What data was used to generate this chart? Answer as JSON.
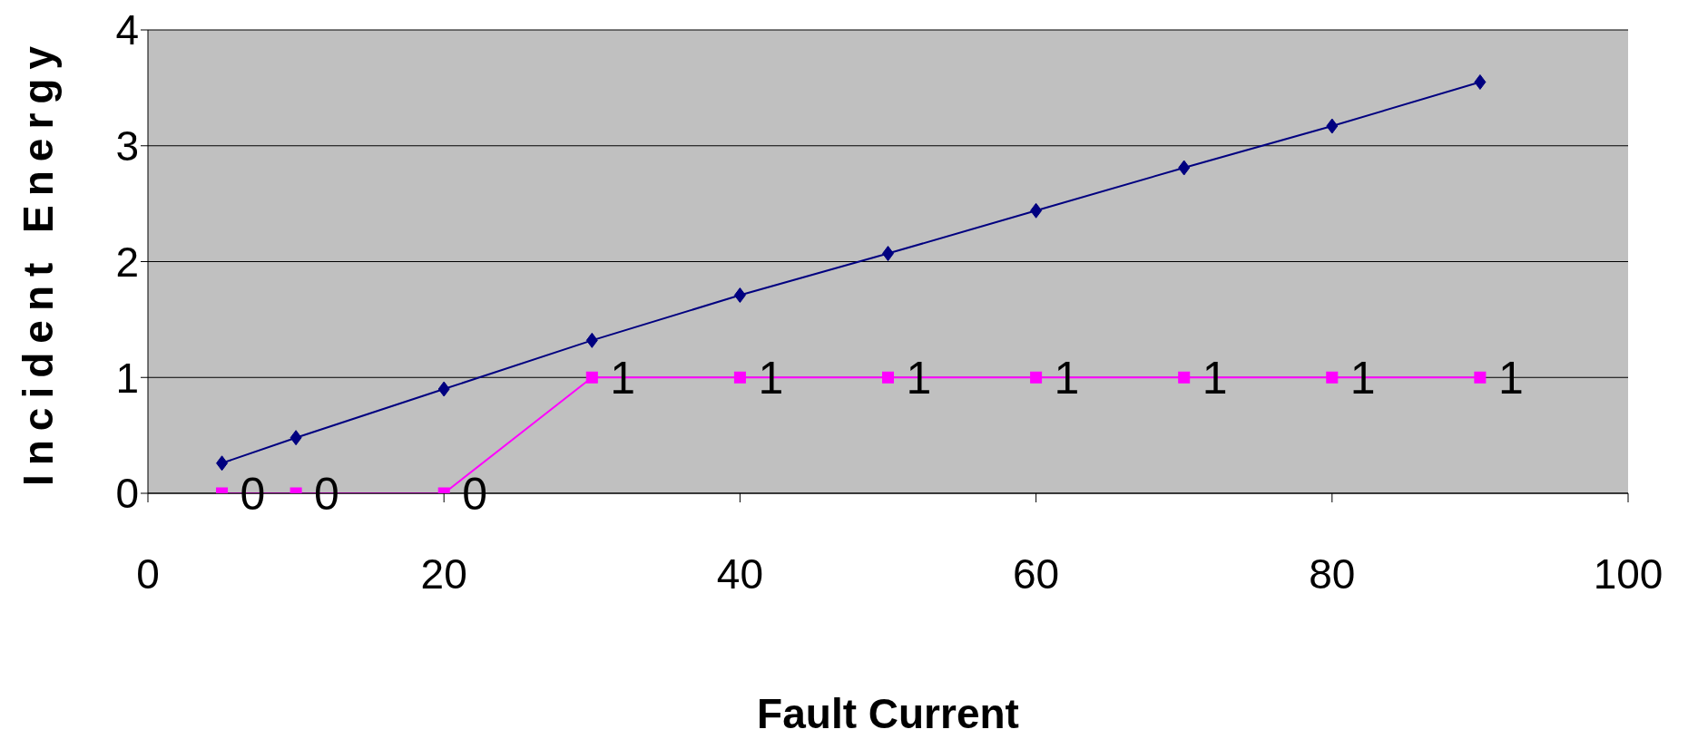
{
  "chart_data": {
    "type": "line",
    "xlabel": "Fault Current",
    "ylabel": "Incident Energy",
    "x": [
      5,
      10,
      20,
      30,
      40,
      50,
      60,
      70,
      80,
      90
    ],
    "series": [
      {
        "color": "#000080",
        "marker": "diamond",
        "values": [
          0.26,
          0.48,
          0.9,
          1.32,
          1.71,
          2.07,
          2.44,
          2.81,
          3.17,
          3.55
        ]
      },
      {
        "color": "#ff00ff",
        "marker": "square",
        "values": [
          0,
          0,
          0,
          1,
          1,
          1,
          1,
          1,
          1,
          1
        ],
        "value_labels": [
          "0",
          "0",
          "0",
          "1",
          "1",
          "1",
          "1",
          "1",
          "1",
          "1"
        ]
      }
    ],
    "xlim": [
      0,
      100
    ],
    "xticks": [
      0,
      20,
      40,
      60,
      80,
      100
    ],
    "ylim": [
      0,
      4
    ],
    "yticks": [
      0,
      1,
      2,
      3,
      4
    ],
    "grid": "y"
  }
}
